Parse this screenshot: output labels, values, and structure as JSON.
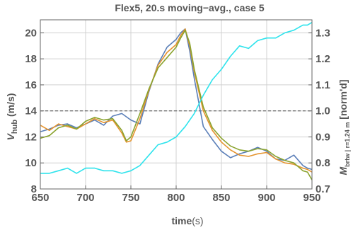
{
  "chart_data": {
    "type": "line",
    "title": "Flex5, 20.s moving−avg., case 5",
    "xlabel": "time",
    "xlabel_unit": "(s)",
    "ylabel_main": "V",
    "ylabel_sub": "hub",
    "ylabel_unit": " (m/s)",
    "y2label_main": "M",
    "y2label_sub": "brtw | r=1.24 m",
    "y2label_unit": " [norm'd]",
    "xlim": [
      650,
      950
    ],
    "ylim": [
      8,
      21
    ],
    "y2lim": [
      0.7,
      1.35
    ],
    "xticks": [
      650,
      700,
      750,
      800,
      850,
      900,
      950
    ],
    "yticks": [
      8,
      10,
      12,
      14,
      16,
      18,
      20
    ],
    "y2ticks": [
      0.7,
      0.8,
      0.9,
      1.0,
      1.1,
      1.2,
      1.3
    ],
    "y2tick_labels": [
      "0.7",
      "0.8",
      "0.9",
      "1.0",
      "1.1",
      "1.2",
      "1.3"
    ],
    "grid": true,
    "reference_line": {
      "axis": "y",
      "value": 14,
      "style": "dashed",
      "color": "#555555"
    },
    "series": [
      {
        "color": "#5b7fb8",
        "axis": "left",
        "x": [
          650,
          660,
          670,
          680,
          690,
          700,
          710,
          720,
          730,
          740,
          750,
          760,
          770,
          780,
          790,
          800,
          805,
          810,
          815,
          820,
          830,
          840,
          850,
          860,
          870,
          880,
          890,
          900,
          910,
          920,
          930,
          940,
          945,
          950
        ],
        "y": [
          12.4,
          12.6,
          12.9,
          13.0,
          12.7,
          13.0,
          13.3,
          12.9,
          13.6,
          13.8,
          13.3,
          13.0,
          15.5,
          17.6,
          18.9,
          19.5,
          20.0,
          20.3,
          18.6,
          16.5,
          12.8,
          11.8,
          10.9,
          10.4,
          10.7,
          10.9,
          11.2,
          10.9,
          10.3,
          10.2,
          10.6,
          9.8,
          9.6,
          9.5
        ]
      },
      {
        "color": "#e5932d",
        "axis": "left",
        "x": [
          650,
          660,
          670,
          680,
          690,
          700,
          710,
          720,
          730,
          740,
          745,
          750,
          760,
          770,
          780,
          790,
          800,
          805,
          810,
          815,
          820,
          830,
          840,
          850,
          860,
          870,
          880,
          890,
          900,
          910,
          920,
          930,
          940,
          945,
          950
        ],
        "y": [
          12.9,
          12.5,
          13.0,
          12.8,
          12.6,
          13.0,
          13.4,
          13.1,
          13.3,
          12.3,
          11.6,
          11.7,
          13.4,
          15.6,
          17.5,
          18.5,
          19.1,
          19.8,
          20.3,
          19.0,
          17.0,
          14.0,
          12.5,
          11.6,
          11.0,
          10.6,
          10.5,
          10.7,
          10.8,
          10.3,
          10.0,
          9.9,
          9.6,
          9.5,
          9.3
        ]
      },
      {
        "color": "#8aa32e",
        "axis": "left",
        "x": [
          650,
          660,
          670,
          680,
          690,
          700,
          710,
          720,
          730,
          740,
          745,
          750,
          760,
          770,
          780,
          790,
          800,
          805,
          810,
          815,
          820,
          830,
          840,
          850,
          860,
          870,
          880,
          890,
          900,
          910,
          920,
          930,
          940,
          945,
          950
        ],
        "y": [
          11.9,
          12.1,
          12.7,
          12.9,
          12.6,
          13.2,
          13.5,
          13.3,
          13.4,
          12.5,
          11.7,
          12.0,
          13.8,
          15.7,
          17.3,
          18.1,
          18.9,
          19.6,
          20.2,
          19.2,
          17.2,
          14.3,
          12.7,
          11.9,
          11.3,
          11.0,
          10.9,
          11.1,
          11.0,
          10.5,
          10.2,
          10.0,
          9.4,
          9.3,
          8.7
        ]
      },
      {
        "color": "#2ee3ec",
        "axis": "right",
        "x": [
          650,
          660,
          670,
          680,
          690,
          700,
          710,
          720,
          730,
          740,
          750,
          760,
          770,
          780,
          790,
          800,
          810,
          820,
          830,
          840,
          850,
          860,
          870,
          880,
          890,
          900,
          910,
          920,
          930,
          940,
          945,
          950
        ],
        "y": [
          0.76,
          0.76,
          0.77,
          0.78,
          0.76,
          0.78,
          0.78,
          0.77,
          0.77,
          0.76,
          0.77,
          0.79,
          0.83,
          0.87,
          0.88,
          0.9,
          0.94,
          0.99,
          1.06,
          1.12,
          1.16,
          1.21,
          1.25,
          1.24,
          1.27,
          1.28,
          1.28,
          1.3,
          1.31,
          1.33,
          1.33,
          1.34
        ]
      }
    ]
  }
}
